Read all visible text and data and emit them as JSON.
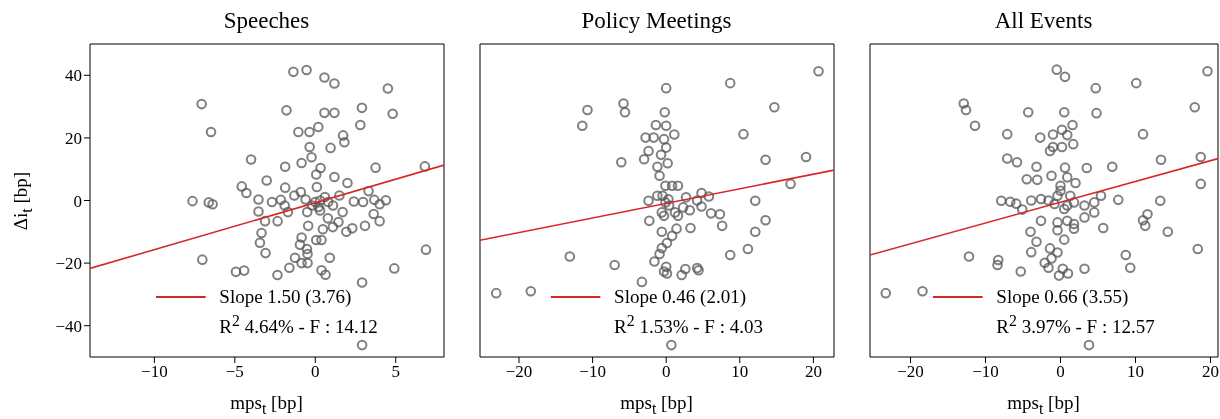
{
  "chart_data": [
    {
      "type": "scatter",
      "title": "Speeches",
      "xlabel": "mps$_{t}$ [bp]",
      "ylabel": "Δi$_{t}$ [bp]",
      "xlim": [
        -14,
        8
      ],
      "xticks": [
        -10,
        -5,
        0,
        5
      ],
      "ylim": [
        -50,
        50
      ],
      "yticks": [
        -40,
        -20,
        0,
        20,
        40
      ],
      "legend": "bottom",
      "annotations": [
        "R$^{2}$ 4.64% - F : 14.12"
      ],
      "series": [
        {
          "marker": "circle",
          "color": "#555555",
          "x": [
            -1.36,
            -0.54,
            0.57,
            1.19,
            4.51,
            -7.06,
            -1.79,
            0.57,
            1.19,
            2.9,
            4.81,
            -6.48,
            -1.05,
            -0.36,
            0.19,
            2.8,
            1.73,
            1.81,
            -0.35,
            0.95,
            -3.99,
            -0.85,
            -0.23,
            0.33,
            -1.87,
            3.75,
            6.81,
            0.06,
            1.19,
            -3.02,
            -4.57,
            -4.28,
            -1.87,
            2.0,
            3.31,
            -7.63,
            -6.62,
            -6.38,
            -3.53,
            -3.53,
            -2.69,
            -2.14,
            3.67,
            4.39,
            2.97,
            2.4,
            4.0,
            3.63,
            4.0,
            3.09,
            2.3,
            1.93,
            1.44,
            1.09,
            0.47,
            0.78,
            0.06,
            0.39,
            -0.44,
            -0.85,
            -0.95,
            -0.52,
            -0.48,
            -1.26,
            -1.61,
            -0.85,
            -0.48,
            0.39,
            0.64,
            0.9,
            -2.34,
            -3.12,
            -3.34,
            -3.44,
            -3.09,
            -2.35,
            -4.93,
            -4.42,
            -7.02,
            6.88,
            4.91,
            2.91,
            2.91,
            -1.3,
            -0.9,
            0.1,
            -0.5,
            0.3,
            1.1,
            1.5,
            -1.7,
            -1.9,
            0,
            0.3,
            0.8,
            -0.6,
            -0.2,
            0.6,
            0.2,
            1.7
          ],
          "values": [
            41.1,
            41.7,
            39.3,
            37.4,
            35.8,
            30.8,
            28.8,
            28.0,
            28.0,
            29.6,
            27.7,
            21.9,
            21.9,
            21.9,
            23.5,
            24.1,
            20.8,
            18.6,
            17.1,
            16.8,
            13.1,
            12.0,
            13.8,
            10.4,
            10.8,
            10.5,
            10.9,
            8.3,
            7.5,
            6.4,
            4.5,
            2.4,
            4.1,
            5.6,
            3.0,
            -0.2,
            -0.6,
            -1.2,
            0.3,
            -3.5,
            -0.5,
            0.2,
            0.2,
            0.1,
            -0.5,
            -0.3,
            -1.2,
            -4.3,
            -6.6,
            -8.1,
            -8.9,
            -10.0,
            -6.9,
            -8.5,
            -9.2,
            -5.7,
            -12.6,
            -12.6,
            -8.1,
            -11.8,
            -14.1,
            -15.5,
            -17.1,
            -18.3,
            -21.5,
            -20.0,
            -20.0,
            -22.3,
            -23.7,
            -18.3,
            -6.6,
            -6.6,
            -10.4,
            -13.5,
            -16.8,
            -23.8,
            -22.8,
            -22.4,
            -18.9,
            -15.7,
            -21.7,
            -26.2,
            -46.2,
            1.6,
            2.7,
            4.3,
            -3.7,
            -3.2,
            -1.6,
            1.6,
            -3.7,
            -1.6,
            -0.5,
            0,
            -0.5,
            0.3,
            -1.6,
            1.1,
            -2.1,
            -3.7
          ]
        },
        {
          "type": "line",
          "marker": "none",
          "name": "Slope 1.50 (3.76)",
          "color": "#d62728",
          "x": [
            -14,
            8
          ],
          "values": [
            -21.7,
            11.3
          ]
        }
      ]
    },
    {
      "type": "scatter",
      "title": "Policy Meetings",
      "xlabel": "mps$_{t}$ [bp]",
      "xlim": [
        -25.3,
        22.8
      ],
      "xticks": [
        -20,
        -10,
        0,
        10,
        20
      ],
      "ylim": [
        -50,
        50
      ],
      "yticks": [
        -40,
        -20,
        0,
        20,
        40
      ],
      "tick_labels": "x",
      "legend": "bottom",
      "annotations": [
        "R$^{2}$ 1.53% - F : 4.03"
      ],
      "series": [
        {
          "marker": "circle",
          "color": "#555555",
          "x": [
            20.7,
            8.7,
            0,
            14.7,
            -5.8,
            -5.6,
            -10.7,
            -11.4,
            -0.2,
            -1.4,
            0,
            1.1,
            10.5,
            -2.8,
            -1.7,
            -0.3,
            0,
            -2.4,
            -3.0,
            -6.1,
            -0.7,
            0.2,
            -1.2,
            13.5,
            19.0,
            16.9,
            4.8,
            5.8,
            12.1,
            -2.4,
            4.2,
            4.8,
            3.2,
            6.1,
            7.3,
            7.6,
            13.5,
            12.1,
            11.1,
            8.7,
            3.3,
            1.4,
            -2.3,
            -0.6,
            0.8,
            0.1,
            -0.6,
            -0.9,
            -1.6,
            0,
            -0.3,
            0.1,
            2.1,
            2.6,
            4.2,
            4.4,
            -7.0,
            -13.1,
            -18.4,
            -23.1,
            -3.3,
            0.7,
            -0.9,
            -0.1,
            0.8,
            1.6,
            -1.2,
            -0.6,
            1.2,
            2.3,
            -0.1,
            0.3,
            -0.5,
            0.4,
            -0.3,
            2.7,
            1.6
          ],
          "values": [
            41.3,
            37.5,
            35.9,
            29.8,
            31.0,
            28.2,
            28.9,
            23.9,
            28.2,
            24.1,
            23.9,
            21.1,
            21.2,
            20.1,
            20.1,
            19.6,
            16.9,
            15.8,
            13.2,
            12.2,
            14.6,
            11.9,
            10.8,
            13.0,
            13.9,
            5.3,
            2.4,
            1.3,
            -0.1,
            -0.1,
            0,
            -1.9,
            -3.1,
            -4.1,
            -4.4,
            -8.1,
            -6.3,
            -10.0,
            -15.5,
            -17.4,
            -8.8,
            -9.0,
            -6.5,
            -10.0,
            -11.3,
            -13.6,
            -15.2,
            -17.1,
            -19.5,
            -21.2,
            -22.7,
            -23.3,
            -23.8,
            -21.9,
            -21.6,
            -22.3,
            -20.6,
            -17.9,
            -29.0,
            -29.6,
            -26.0,
            -46.2,
            7.9,
            4.7,
            4.7,
            4.7,
            1.5,
            -3.8,
            -3.8,
            -2.2,
            -0.6,
            0.4,
            1.5,
            -1.6,
            -4.9,
            1.0,
            -4.9
          ]
        },
        {
          "type": "line",
          "marker": "none",
          "name": "Slope 0.46 (2.01)",
          "color": "#d62728",
          "x": [
            -25.3,
            22.8
          ],
          "values": [
            -12.7,
            9.7
          ]
        }
      ]
    },
    {
      "type": "scatter",
      "title": "All Events",
      "xlabel": "mps$_{t}$ [bp]",
      "xlim": [
        -25.4,
        21
      ],
      "xticks": [
        -20,
        -10,
        0,
        10,
        20
      ],
      "ylim": [
        -50,
        50
      ],
      "yticks": [
        -40,
        -20,
        0,
        20,
        40
      ],
      "tick_labels": "x",
      "legend": "bottom",
      "annotations": [
        "R$^{2}$ 3.97% - F : 12.57"
      ],
      "series": [
        {
          "marker": "circle",
          "color": "#555555",
          "x": [
            -0.5,
            0.6,
            19.6,
            10.1,
            4.7,
            -12.9,
            -12.6,
            -11.4,
            -4.3,
            0.5,
            4.8,
            17.9,
            -7.1,
            -2.7,
            -1.0,
            0.2,
            1.6,
            0.9,
            11.0,
            1.7,
            -1.0,
            0.2,
            -1.4,
            -7.1,
            -5.8,
            -3.2,
            0.6,
            3.5,
            6.9,
            13.4,
            18.7,
            18.7,
            -1.2,
            -4.5,
            -3.1,
            0.9,
            2.0,
            0,
            5.4,
            7.7,
            13.3,
            -7.9,
            -6.7,
            -5.9,
            -5.1,
            -3.9,
            -2.6,
            -1.6,
            0.9,
            1.8,
            3.2,
            4.5,
            4.5,
            -2.6,
            3.2,
            1.8,
            0.9,
            -0.4,
            11.0,
            11.6,
            11.3,
            14.3,
            18.3,
            5.7,
            1.8,
            -0.4,
            -4.0,
            -3.2,
            -3.9,
            0.5,
            -1.4,
            -0.4,
            -1.2,
            -2.1,
            -1.6,
            0.3,
            1.0,
            -0.2,
            3.2,
            8.7,
            9.3,
            -12.2,
            -8.3,
            -8.4,
            -5.3,
            -18.4,
            -23.3,
            3.8,
            -0.4,
            0,
            1.3,
            -0.8,
            0.5
          ],
          "values": [
            41.8,
            39.5,
            41.3,
            37.5,
            35.9,
            31.0,
            28.9,
            23.9,
            28.2,
            28.2,
            27.9,
            29.8,
            21.2,
            20.1,
            21.1,
            22.6,
            24.1,
            20.9,
            21.2,
            18.0,
            17.1,
            17.1,
            15.8,
            13.4,
            12.2,
            10.8,
            10.5,
            10.4,
            10.8,
            13.0,
            13.9,
            5.3,
            7.9,
            6.8,
            6.6,
            7.4,
            5.6,
            4.7,
            1.5,
            0.2,
            -0.1,
            -0.1,
            -0.4,
            -1.0,
            -2.9,
            0,
            0.5,
            0,
            -1.6,
            -0.6,
            -1.6,
            -0.6,
            -3.8,
            -6.5,
            -5.4,
            -7.5,
            -6.5,
            -7.0,
            -6.3,
            -4.4,
            -8.1,
            -10.0,
            -15.5,
            -8.8,
            -9.0,
            -9.5,
            -10.0,
            -13.2,
            -16.5,
            -12.5,
            -15.3,
            -16.6,
            -18.5,
            -19.9,
            -21.5,
            -21.8,
            -23.3,
            -24.0,
            -21.8,
            -17.4,
            -21.5,
            -17.9,
            -19.0,
            -20.6,
            -22.7,
            -29.0,
            -29.6,
            -46.2,
            1.5,
            3.1,
            1.5,
            -1.1,
            -2.7
          ]
        },
        {
          "type": "line",
          "marker": "none",
          "name": "Slope 0.66 (3.55)",
          "color": "#d62728",
          "x": [
            -25.4,
            21
          ],
          "values": [
            -17.4,
            13.4
          ]
        }
      ]
    }
  ]
}
